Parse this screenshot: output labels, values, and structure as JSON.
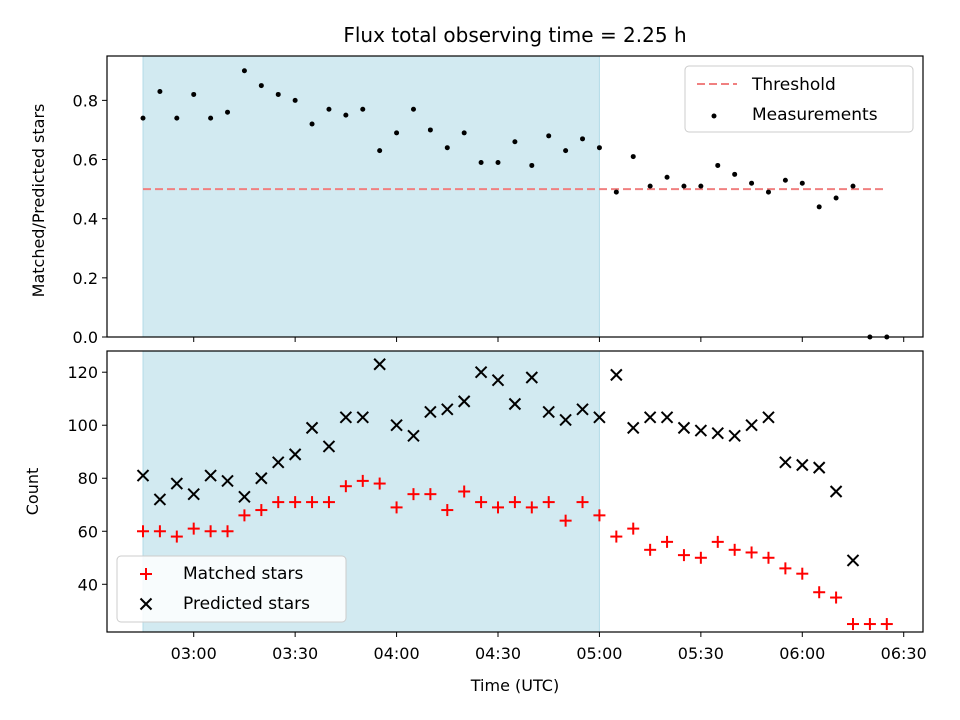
{
  "figure": {
    "title": "Flux total observing time = 2.25 h",
    "xlabel": "Time (UTC)",
    "x_tick_labels": [
      "03:00",
      "03:30",
      "04:00",
      "04:30",
      "05:00",
      "05:30",
      "06:00",
      "06:30"
    ]
  },
  "chart_data": [
    {
      "type": "scatter",
      "panel": "top",
      "ylabel": "Matched/Predicted stars",
      "ylim": [
        0,
        0.95
      ],
      "y_ticks": [
        0.0,
        0.2,
        0.4,
        0.6,
        0.8
      ],
      "y_tick_labels": [
        "0.0",
        "0.2",
        "0.4",
        "0.6",
        "0.8"
      ],
      "shaded_region": {
        "x_start": "02:45",
        "x_end": "05:00",
        "color": "#add8e6"
      },
      "legend": {
        "placement": "top-right",
        "entries": [
          "Threshold",
          "Measurements"
        ]
      },
      "series": [
        {
          "name": "Threshold",
          "style": "dashed-line",
          "color": "#f08080",
          "x": [
            "02:45",
            "06:25"
          ],
          "y": [
            0.5,
            0.5
          ]
        },
        {
          "name": "Measurements",
          "style": "dot",
          "color": "#000000",
          "x": [
            "02:45",
            "02:50",
            "02:55",
            "03:00",
            "03:05",
            "03:10",
            "03:15",
            "03:20",
            "03:25",
            "03:30",
            "03:35",
            "03:40",
            "03:45",
            "03:50",
            "03:55",
            "04:00",
            "04:05",
            "04:10",
            "04:15",
            "04:20",
            "04:25",
            "04:30",
            "04:35",
            "04:40",
            "04:45",
            "04:50",
            "04:55",
            "05:00",
            "05:05",
            "05:10",
            "05:15",
            "05:20",
            "05:25",
            "05:30",
            "05:35",
            "05:40",
            "05:45",
            "05:50",
            "05:55",
            "06:00",
            "06:05",
            "06:10",
            "06:15",
            "06:20",
            "06:25"
          ],
          "y": [
            0.74,
            0.83,
            0.74,
            0.82,
            0.74,
            0.76,
            0.9,
            0.85,
            0.82,
            0.8,
            0.72,
            0.77,
            0.75,
            0.77,
            0.63,
            0.69,
            0.77,
            0.7,
            0.64,
            0.69,
            0.59,
            0.59,
            0.66,
            0.58,
            0.68,
            0.63,
            0.67,
            0.64,
            0.49,
            0.61,
            0.51,
            0.54,
            0.51,
            0.51,
            0.58,
            0.55,
            0.52,
            0.49,
            0.53,
            0.52,
            0.44,
            0.47,
            0.51,
            0.0,
            0.0
          ]
        }
      ]
    },
    {
      "type": "scatter",
      "panel": "bottom",
      "ylabel": "Count",
      "ylim": [
        22,
        128
      ],
      "y_ticks": [
        40,
        60,
        80,
        100,
        120
      ],
      "y_tick_labels": [
        "40",
        "60",
        "80",
        "100",
        "120"
      ],
      "shaded_region": {
        "x_start": "02:45",
        "x_end": "05:00",
        "color": "#add8e6"
      },
      "legend": {
        "placement": "bottom-left",
        "entries": [
          "Matched stars",
          "Predicted stars"
        ]
      },
      "series": [
        {
          "name": "Matched stars",
          "marker": "plus",
          "color": "#ff0000",
          "x": [
            "02:45",
            "02:50",
            "02:55",
            "03:00",
            "03:05",
            "03:10",
            "03:15",
            "03:20",
            "03:25",
            "03:30",
            "03:35",
            "03:40",
            "03:45",
            "03:50",
            "03:55",
            "04:00",
            "04:05",
            "04:10",
            "04:15",
            "04:20",
            "04:25",
            "04:30",
            "04:35",
            "04:40",
            "04:45",
            "04:50",
            "04:55",
            "05:00",
            "05:05",
            "05:10",
            "05:15",
            "05:20",
            "05:25",
            "05:30",
            "05:35",
            "05:40",
            "05:45",
            "05:50",
            "05:55",
            "06:00",
            "06:05",
            "06:10",
            "06:15",
            "06:20",
            "06:25"
          ],
          "y": [
            60,
            60,
            58,
            61,
            60,
            60,
            66,
            68,
            71,
            71,
            71,
            71,
            77,
            79,
            78,
            69,
            74,
            74,
            68,
            75,
            71,
            69,
            71,
            69,
            71,
            64,
            71,
            66,
            58,
            61,
            53,
            56,
            51,
            50,
            56,
            53,
            52,
            50,
            46,
            44,
            37,
            35,
            25,
            25,
            25
          ]
        },
        {
          "name": "Predicted stars",
          "marker": "x",
          "color": "#000000",
          "x": [
            "02:45",
            "02:50",
            "02:55",
            "03:00",
            "03:05",
            "03:10",
            "03:15",
            "03:20",
            "03:25",
            "03:30",
            "03:35",
            "03:40",
            "03:45",
            "03:50",
            "03:55",
            "04:00",
            "04:05",
            "04:10",
            "04:15",
            "04:20",
            "04:25",
            "04:30",
            "04:35",
            "04:40",
            "04:45",
            "04:50",
            "04:55",
            "05:00",
            "05:05",
            "05:10",
            "05:15",
            "05:20",
            "05:25",
            "05:30",
            "05:35",
            "05:40",
            "05:45",
            "05:50",
            "05:55",
            "06:00",
            "06:05",
            "06:10",
            "06:15"
          ],
          "y": [
            81,
            72,
            78,
            74,
            81,
            79,
            73,
            80,
            86,
            89,
            99,
            92,
            103,
            103,
            123,
            100,
            96,
            105,
            106,
            109,
            120,
            117,
            108,
            118,
            105,
            102,
            106,
            103,
            119,
            99,
            103,
            103,
            99,
            98,
            97,
            96,
            100,
            103,
            86,
            85,
            84,
            75,
            49
          ]
        }
      ]
    }
  ]
}
